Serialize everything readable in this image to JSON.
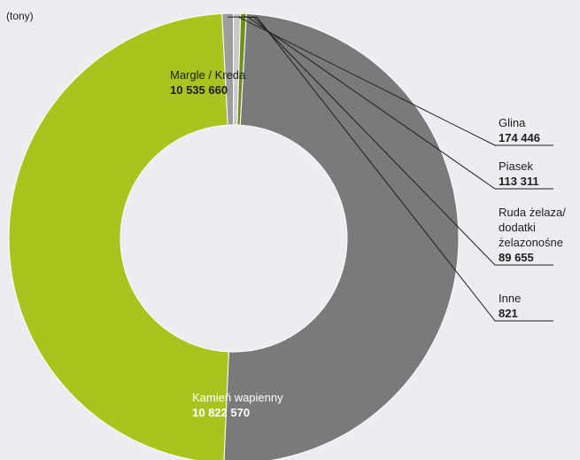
{
  "unit_label": "(tony)",
  "chart_data": {
    "type": "pie",
    "donut": true,
    "title": "",
    "unit": "(tony)",
    "slices": [
      {
        "name": "Margle / Kreda",
        "value": 10535660,
        "value_label": "10 535 660",
        "color": "#a9c31f"
      },
      {
        "name": "Glina",
        "value": 174446,
        "value_label": "174 446",
        "color": "#9d9d9c"
      },
      {
        "name": "Piasek",
        "value": 113311,
        "value_label": "113 311",
        "color": "#c9c9c9"
      },
      {
        "name": "Ruda żelaza/ dodatki żelazonośne",
        "name_lines": [
          "Ruda żelaza/",
          "dodatki",
          "żelazonośne"
        ],
        "value": 89655,
        "value_label": "89 655",
        "color": "#6f8f1c"
      },
      {
        "name": "Inne",
        "value": 821,
        "value_label": "821",
        "color": "#1d1d1b"
      },
      {
        "name": "Kamień wapienny",
        "value": 10822570,
        "value_label": "10 822 570",
        "color": "#7a7a79"
      }
    ]
  }
}
